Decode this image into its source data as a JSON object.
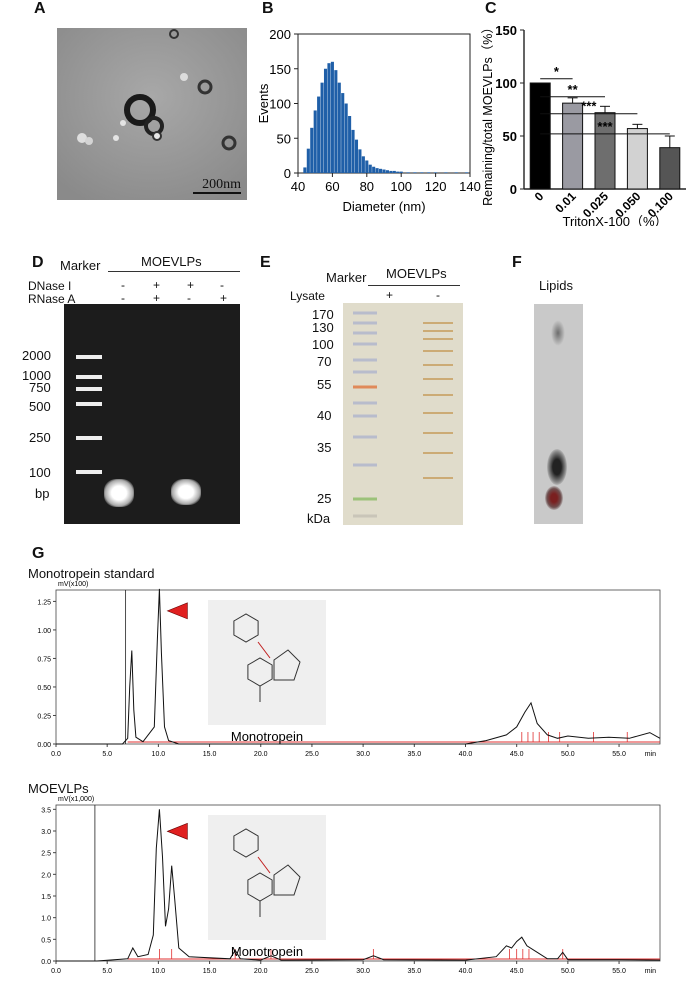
{
  "panels": {
    "A": {
      "label": "A",
      "scale_bar": "200nm"
    },
    "B": {
      "label": "B"
    },
    "C": {
      "label": "C"
    },
    "D": {
      "label": "D",
      "marker_label": "Marker",
      "group_label": "MOEVLPs",
      "row_labels": [
        "DNase I",
        "RNase A"
      ],
      "dnase_signs": [
        "-",
        "+",
        "+",
        "-"
      ],
      "rnase_signs": [
        "-",
        "+",
        "-",
        "+"
      ],
      "ladder": [
        "2000",
        "1000",
        "750",
        "500",
        "250",
        "100"
      ],
      "unit": "bp"
    },
    "E": {
      "label": "E",
      "marker_label": "Marker",
      "group_label": "MOEVLPs",
      "lysate_label": "Lysate",
      "lysate_signs": [
        "+",
        "-"
      ],
      "ladder": [
        "170",
        "130",
        "100",
        "70",
        "55",
        "40",
        "35",
        "25"
      ],
      "unit": "kDa"
    },
    "F": {
      "label": "F",
      "title": "Lipids"
    },
    "G": {
      "label": "G"
    }
  },
  "chart_data": [
    {
      "id": "B",
      "type": "bar",
      "title": "",
      "xlabel": "Diameter (nm)",
      "ylabel": "Events",
      "xlim": [
        40,
        140
      ],
      "ylim": [
        0,
        200
      ],
      "xticks": [
        "40",
        "60",
        "80",
        "100",
        "120",
        "140"
      ],
      "yticks": [
        "0",
        "50",
        "100",
        "150",
        "200"
      ],
      "series": [
        {
          "name": "Events",
          "color": "#1f5fa8",
          "x": [
            44,
            46,
            48,
            50,
            52,
            54,
            56,
            58,
            60,
            62,
            64,
            66,
            68,
            70,
            72,
            74,
            76,
            78,
            80,
            82,
            84,
            86,
            88,
            90,
            92,
            94,
            96,
            98,
            100,
            104,
            108,
            112,
            116,
            120,
            126,
            132,
            138
          ],
          "values": [
            8,
            35,
            65,
            90,
            110,
            130,
            150,
            158,
            160,
            148,
            130,
            115,
            100,
            82,
            62,
            48,
            34,
            24,
            18,
            12,
            9,
            7,
            6,
            5,
            4,
            3,
            3,
            2,
            2,
            1,
            1,
            1,
            1,
            1,
            1,
            1,
            1
          ]
        }
      ]
    },
    {
      "id": "C",
      "type": "bar",
      "xlabel": "TritonX-100（%）",
      "ylabel": "Remaining/total MOEVLPs（%）",
      "ylim": [
        0,
        150
      ],
      "yticks": [
        "0",
        "50",
        "100",
        "150"
      ],
      "categories": [
        "0",
        "0.01",
        "0.025",
        "0.050",
        "0.100"
      ],
      "values": [
        100,
        81,
        72,
        57,
        39
      ],
      "errors": [
        0,
        5,
        6,
        4,
        11
      ],
      "colors": [
        "#000000",
        "#9a9aa2",
        "#6e6e6e",
        "#d2d2d2",
        "#555555"
      ],
      "significance": [
        "*",
        "**",
        "***",
        "***"
      ]
    },
    {
      "id": "G1",
      "type": "line",
      "title": "Monotropein standard",
      "y_unit_label": "mV(x100)",
      "x_unit_label": "min",
      "xlim": [
        0,
        59
      ],
      "ylim": [
        0,
        1.35
      ],
      "xticks": [
        "0.0",
        "5.0",
        "10.0",
        "15.0",
        "20.0",
        "25.0",
        "30.0",
        "35.0",
        "40.0",
        "45.0",
        "50.0",
        "55.0"
      ],
      "yticks": [
        "0.00",
        "0.25",
        "0.50",
        "0.75",
        "1.00",
        "1.25"
      ],
      "annotation": "Monotropein",
      "series": [
        {
          "name": "signal",
          "x": [
            0,
            6.5,
            7.0,
            7.2,
            7.4,
            7.6,
            7.8,
            8.5,
            9.6,
            9.9,
            10.1,
            10.3,
            10.6,
            11,
            12,
            40,
            42,
            44,
            45,
            45.8,
            46.4,
            47,
            48,
            49,
            50,
            52,
            54,
            56,
            58,
            59
          ],
          "y": [
            0,
            0.0,
            0.05,
            0.5,
            0.82,
            0.3,
            0.06,
            0.02,
            0.15,
            0.9,
            1.36,
            0.8,
            0.15,
            0.03,
            0.0,
            0.0,
            0.03,
            0.08,
            0.15,
            0.28,
            0.36,
            0.18,
            0.08,
            0.05,
            0.07,
            0.05,
            0.06,
            0.05,
            0.1,
            0.05
          ]
        }
      ]
    },
    {
      "id": "G2",
      "type": "line",
      "title": "MOEVLPs",
      "y_unit_label": "mV(x1,000)",
      "x_unit_label": "min",
      "xlim": [
        0,
        59
      ],
      "ylim": [
        0,
        3.6
      ],
      "xticks": [
        "0.0",
        "5.0",
        "10.0",
        "15.0",
        "20.0",
        "25.0",
        "30.0",
        "35.0",
        "40.0",
        "45.0",
        "50.0",
        "55.0"
      ],
      "yticks": [
        "0.0",
        "0.5",
        "1.0",
        "1.5",
        "2.0",
        "2.5",
        "3.0",
        "3.5"
      ],
      "annotation": "Monotropein",
      "series": [
        {
          "name": "signal",
          "x": [
            0,
            4,
            7,
            7.5,
            8,
            9,
            9.5,
            9.8,
            10.1,
            10.4,
            10.7,
            11,
            11.3,
            11.6,
            12,
            13,
            17,
            17.5,
            18,
            20,
            21,
            22,
            30,
            31,
            32,
            40,
            43,
            44,
            44.5,
            45,
            45.5,
            46,
            47,
            48,
            49,
            49.5,
            50,
            52,
            55,
            59
          ],
          "y": [
            0,
            0,
            0.05,
            0.3,
            0.1,
            0.15,
            0.6,
            2.6,
            3.5,
            2.4,
            0.8,
            1.2,
            2.2,
            1.4,
            0.3,
            0.1,
            0.05,
            0.25,
            0.05,
            0.02,
            0.12,
            0.02,
            0.03,
            0.12,
            0.03,
            0.02,
            0.1,
            0.35,
            0.3,
            0.45,
            0.55,
            0.35,
            0.2,
            0.05,
            0.05,
            0.2,
            0.03,
            0.03,
            0.03,
            0.02
          ]
        }
      ]
    }
  ]
}
